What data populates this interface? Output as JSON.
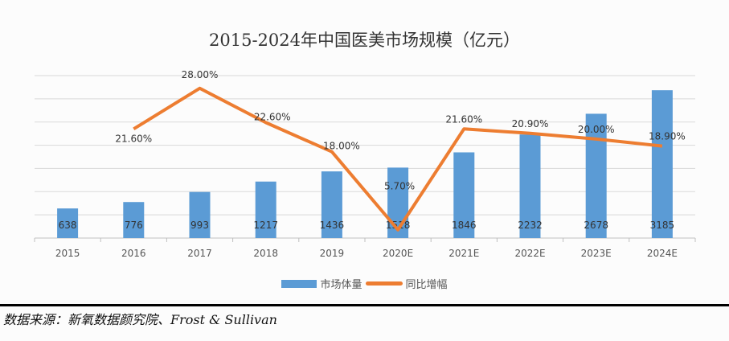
{
  "chart_data": {
    "type": "bar+line",
    "title": "2015-2024年中国医美市场规模（亿元）",
    "categories": [
      "2015",
      "2016",
      "2017",
      "2018",
      "2019",
      "2020E",
      "2021E",
      "2022E",
      "2023E",
      "2024E"
    ],
    "series": [
      {
        "name": "市场体量",
        "type": "bar",
        "axis": "primary",
        "color": "#5b9bd5",
        "values": [
          638,
          776,
          993,
          1217,
          1436,
          1518,
          1846,
          2232,
          2678,
          3185
        ],
        "labels": [
          "638",
          "776",
          "993",
          "1217",
          "1436",
          "1518",
          "1846",
          "2232",
          "2678",
          "3185"
        ]
      },
      {
        "name": "同比增幅",
        "type": "line",
        "axis": "secondary",
        "color": "#ed7d31",
        "values": [
          null,
          21.6,
          28.0,
          22.6,
          18.0,
          5.7,
          21.6,
          20.9,
          20.0,
          18.9
        ],
        "labels": [
          "",
          "21.60%",
          "28.00%",
          "22.60%",
          "18.00%",
          "5.70%",
          "21.60%",
          "20.90%",
          "20.00%",
          "18.90%"
        ]
      }
    ],
    "ylim": [
      0,
      3500
    ],
    "y2lim": [
      4.4,
      30
    ],
    "grid": true,
    "legend": "bottom"
  },
  "source": "数据来源：新氧数据颜究院、Frost & Sullivan"
}
